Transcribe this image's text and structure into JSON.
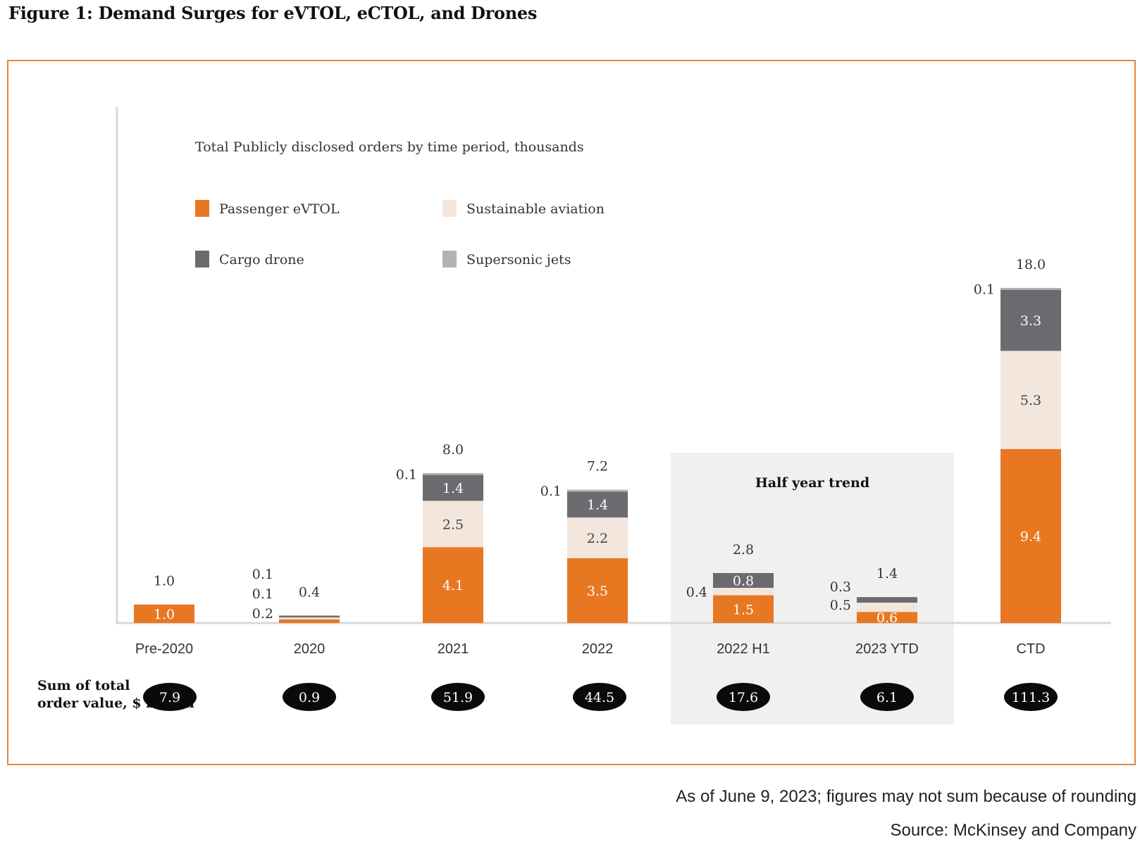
{
  "figure_title": "Figure 1: Demand Surges for eVTOL, eCTOL, and Drones",
  "footnote": "As of June 9, 2023; figures may not sum because of rounding",
  "source": "Source: McKinsey and Company",
  "colors": {
    "passenger_evtol": "#e87722",
    "sustainable_aviation": "#f2e6dd",
    "cargo_drone": "#6b6b6f",
    "supersonic_jets": "#b3b3b3",
    "frame": "#e8863a",
    "highlight_bg": "#f0f0f0",
    "pill": "#0a0a0a"
  },
  "chart_data": {
    "type": "bar",
    "stacked": true,
    "title": "Total Publicly disclosed orders by time period, thousands",
    "xlabel": "",
    "ylabel": "",
    "ylim": [
      0,
      18.5
    ],
    "grid": false,
    "legend_position": "top-left",
    "categories": [
      "Pre-2020",
      "2020",
      "2021",
      "2022",
      "2022 H1",
      "2023 YTD",
      "CTD"
    ],
    "series": [
      {
        "name": "Passenger eVTOL",
        "values": [
          1.0,
          0.2,
          4.1,
          3.5,
          1.5,
          0.6,
          9.4
        ]
      },
      {
        "name": "Sustainable aviation",
        "values": [
          0,
          0.1,
          2.5,
          2.2,
          0.4,
          0.5,
          5.3
        ]
      },
      {
        "name": "Cargo drone",
        "values": [
          0,
          0.1,
          1.4,
          1.4,
          0.8,
          0.3,
          3.3
        ]
      },
      {
        "name": "Supersonic jets",
        "values": [
          0,
          0,
          0.1,
          0.1,
          0,
          0,
          0.1
        ]
      }
    ],
    "segment_labels": [
      {
        "category": "Pre-2020",
        "series": "Passenger eVTOL",
        "text": "1.0",
        "placement": "inside"
      },
      {
        "category": "2020",
        "series": "Passenger eVTOL",
        "text": "0.2",
        "placement": "left"
      },
      {
        "category": "2020",
        "series": "Sustainable aviation",
        "text": "0.1",
        "placement": "left"
      },
      {
        "category": "2020",
        "series": "Cargo drone",
        "text": "0.1",
        "placement": "left"
      },
      {
        "category": "2021",
        "series": "Passenger eVTOL",
        "text": "4.1",
        "placement": "inside"
      },
      {
        "category": "2021",
        "series": "Sustainable aviation",
        "text": "2.5",
        "placement": "inside"
      },
      {
        "category": "2021",
        "series": "Cargo drone",
        "text": "1.4",
        "placement": "inside"
      },
      {
        "category": "2021",
        "series": "Supersonic jets",
        "text": "0.1",
        "placement": "left"
      },
      {
        "category": "2022",
        "series": "Passenger eVTOL",
        "text": "3.5",
        "placement": "inside"
      },
      {
        "category": "2022",
        "series": "Sustainable aviation",
        "text": "2.2",
        "placement": "inside"
      },
      {
        "category": "2022",
        "series": "Cargo drone",
        "text": "1.4",
        "placement": "inside"
      },
      {
        "category": "2022",
        "series": "Supersonic jets",
        "text": "0.1",
        "placement": "left"
      },
      {
        "category": "2022 H1",
        "series": "Passenger eVTOL",
        "text": "1.5",
        "placement": "inside"
      },
      {
        "category": "2022 H1",
        "series": "Sustainable aviation",
        "text": "0.4",
        "placement": "left"
      },
      {
        "category": "2022 H1",
        "series": "Cargo drone",
        "text": "0.8",
        "placement": "inside"
      },
      {
        "category": "2023 YTD",
        "series": "Passenger eVTOL",
        "text": "0.6",
        "placement": "inside"
      },
      {
        "category": "2023 YTD",
        "series": "Sustainable aviation",
        "text": "0.5",
        "placement": "left"
      },
      {
        "category": "2023 YTD",
        "series": "Cargo drone",
        "text": "0.3",
        "placement": "left"
      },
      {
        "category": "CTD",
        "series": "Passenger eVTOL",
        "text": "9.4",
        "placement": "inside"
      },
      {
        "category": "CTD",
        "series": "Sustainable aviation",
        "text": "5.3",
        "placement": "inside"
      },
      {
        "category": "CTD",
        "series": "Cargo drone",
        "text": "3.3",
        "placement": "inside"
      },
      {
        "category": "CTD",
        "series": "Supersonic jets",
        "text": "0.1",
        "placement": "left"
      }
    ],
    "totals": [
      "1.0",
      "0.4",
      "8.0",
      "7.2",
      "2.8",
      "1.4",
      "18.0"
    ],
    "order_value_label": "Sum of total order value, $ billion",
    "order_values": [
      "7.9",
      "0.9",
      "51.9",
      "44.5",
      "17.6",
      "6.1",
      "111.3"
    ],
    "highlight": {
      "label": "Half year trend",
      "categories": [
        "2022 H1",
        "2023 YTD"
      ]
    }
  }
}
